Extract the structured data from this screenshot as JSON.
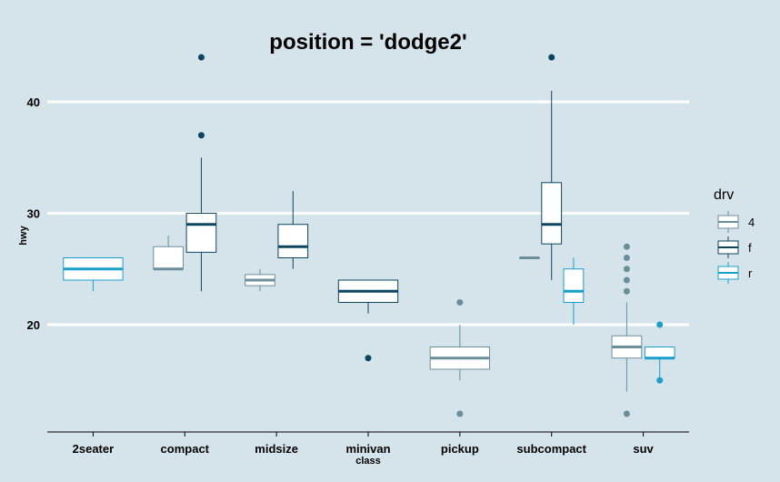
{
  "chart_data": {
    "type": "box",
    "title": "position = 'dodge2'",
    "xlabel": "class",
    "ylabel": "hwy",
    "ylim": [
      10.5,
      46
    ],
    "yticks": [
      20,
      30,
      40
    ],
    "grid": "horizontal major gridlines",
    "legend_position": "right",
    "legend_title": "drv",
    "colors": {
      "4": "#6b8e9b",
      "f": "#0b4560",
      "r": "#1a9fcd"
    },
    "categories": [
      "2seater",
      "compact",
      "midsize",
      "minivan",
      "pickup",
      "subcompact",
      "suv"
    ],
    "series": [
      {
        "name": "4",
        "boxes": [
          {
            "category": "compact",
            "whisker_low": 25,
            "q1": 25,
            "median": 25,
            "q3": 27,
            "whisker_high": 28,
            "outliers": []
          },
          {
            "category": "midsize",
            "whisker_low": 23,
            "q1": 23.5,
            "median": 24,
            "q3": 24.5,
            "whisker_high": 25,
            "outliers": []
          },
          {
            "category": "pickup",
            "whisker_low": 15,
            "q1": 16,
            "median": 17,
            "q3": 18,
            "whisker_high": 20,
            "outliers": [
              22,
              12
            ]
          },
          {
            "category": "subcompact",
            "whisker_low": 26,
            "q1": 26,
            "median": 26,
            "q3": 26,
            "whisker_high": 26,
            "outliers": []
          },
          {
            "category": "suv",
            "whisker_low": 14,
            "q1": 17,
            "median": 18,
            "q3": 19,
            "whisker_high": 22,
            "outliers": [
              27,
              26,
              25,
              24,
              23,
              12
            ]
          }
        ]
      },
      {
        "name": "f",
        "boxes": [
          {
            "category": "compact",
            "whisker_low": 23,
            "q1": 26.5,
            "median": 29,
            "q3": 30,
            "whisker_high": 35,
            "outliers": [
              44,
              37
            ]
          },
          {
            "category": "midsize",
            "whisker_low": 25,
            "q1": 26,
            "median": 27,
            "q3": 29,
            "whisker_high": 32,
            "outliers": []
          },
          {
            "category": "minivan",
            "whisker_low": 21,
            "q1": 22,
            "median": 23,
            "q3": 24,
            "whisker_high": 24,
            "outliers": [
              17
            ]
          },
          {
            "category": "subcompact",
            "whisker_low": 24,
            "q1": 27.25,
            "median": 29,
            "q3": 32.75,
            "whisker_high": 41,
            "outliers": [
              44
            ]
          }
        ]
      },
      {
        "name": "r",
        "boxes": [
          {
            "category": "2seater",
            "whisker_low": 23,
            "q1": 24,
            "median": 25,
            "q3": 26,
            "whisker_high": 26,
            "outliers": []
          },
          {
            "category": "subcompact",
            "whisker_low": 20,
            "q1": 22,
            "median": 23,
            "q3": 25,
            "whisker_high": 26,
            "outliers": []
          },
          {
            "category": "suv",
            "whisker_low": 15,
            "q1": 17,
            "median": 17,
            "q3": 18,
            "whisker_high": 18,
            "outliers": [
              20,
              15
            ]
          }
        ]
      }
    ]
  }
}
